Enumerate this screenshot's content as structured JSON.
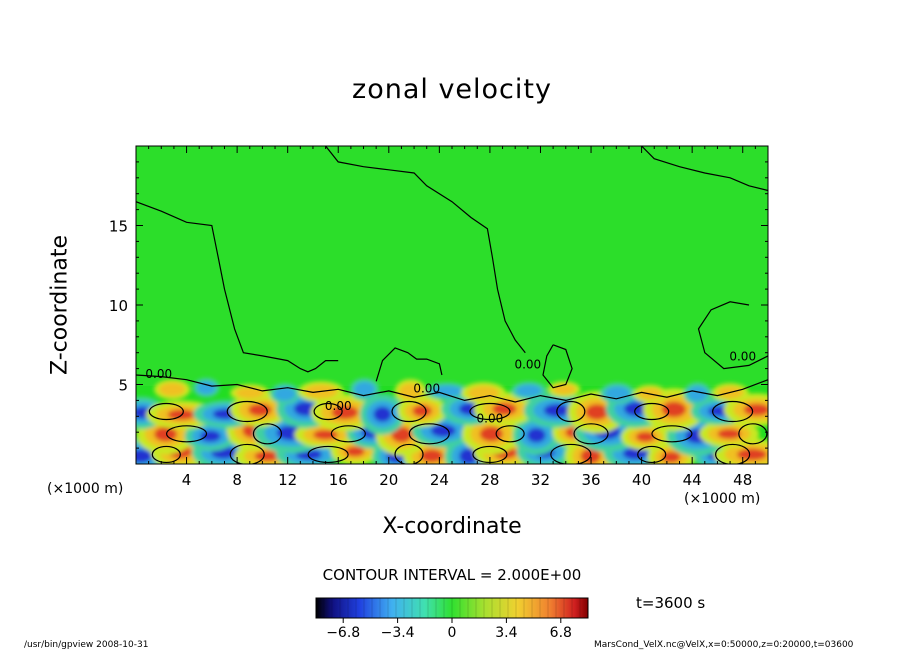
{
  "chart_data": {
    "type": "heatmap",
    "title": "zonal velocity",
    "xlabel": "X-coordinate",
    "ylabel": "Z-coordinate",
    "x_unit_label": "(×1000 m)",
    "xlim": [
      0,
      50
    ],
    "ylim": [
      0,
      20
    ],
    "x_ticks": [
      4,
      8,
      12,
      16,
      20,
      24,
      28,
      32,
      36,
      40,
      44,
      48
    ],
    "y_ticks": [
      5,
      10,
      15
    ],
    "colorbar": {
      "range": [
        -8.5,
        8.5
      ],
      "ticks": [
        -6.8,
        -3.4,
        0,
        3.4,
        6.8
      ],
      "tick_labels": [
        "−6.8",
        "−3.4",
        "0",
        "3.4",
        "6.8"
      ]
    },
    "contour_interval_text": "CONTOUR INTERVAL = 2.000E+00",
    "contour_labels": [
      {
        "text": "0.00",
        "x": 1.8,
        "y": 5.4
      },
      {
        "text": "0.00",
        "x": 16,
        "y": 3.4
      },
      {
        "text": "0.00",
        "x": 23,
        "y": 4.5
      },
      {
        "text": "0.00",
        "x": 28,
        "y": 2.6
      },
      {
        "text": "0.00",
        "x": 31,
        "y": 6.0
      },
      {
        "text": "0.00",
        "x": 48,
        "y": 6.5
      }
    ],
    "time_text": "t=3600 s",
    "footer_left": "/usr/bin/gpview   2008-10-31",
    "footer_right": "MarsCond_VelX.nc@VelX,x=0:50000,z=0:20000,t=03600",
    "colors": {
      "background_field": "#22dd22",
      "strong_negative": "#2030d0",
      "negative": "#30a8e0",
      "weak_negative": "#40d0a0",
      "weak_positive": "#c8e820",
      "positive": "#f0c020",
      "strong_positive": "#e04020"
    }
  }
}
